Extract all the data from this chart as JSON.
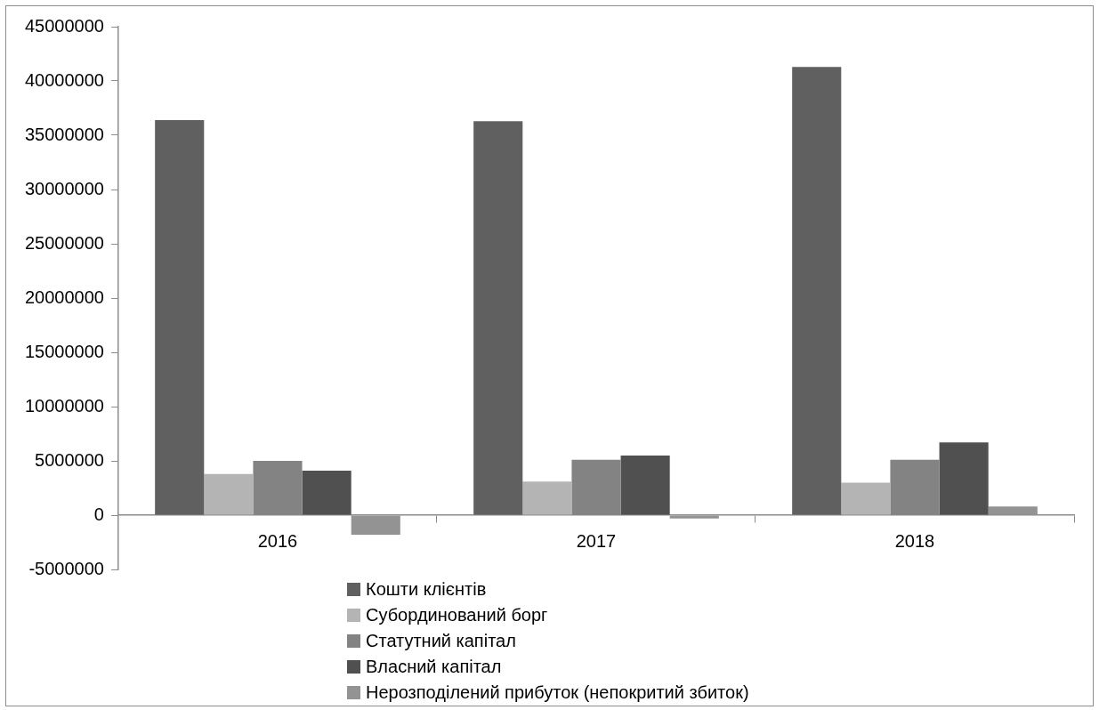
{
  "chart_data": {
    "type": "bar",
    "categories": [
      "2016",
      "2017",
      "2018"
    ],
    "series": [
      {
        "name": "Кошти клієнтів",
        "color": "#606060",
        "values": [
          36400000,
          36300000,
          41300000
        ]
      },
      {
        "name": "Субординований борг",
        "color": "#b4b4b4",
        "values": [
          3800000,
          3100000,
          3000000
        ]
      },
      {
        "name": "Статутний капітал",
        "color": "#838383",
        "values": [
          5000000,
          5100000,
          5100000
        ]
      },
      {
        "name": "Власний капітал",
        "color": "#505050",
        "values": [
          4100000,
          5500000,
          6700000
        ]
      },
      {
        "name": "Нерозподілений прибуток (непокритий збиток)",
        "color": "#939393",
        "values": [
          -1800000,
          -300000,
          800000
        ]
      }
    ],
    "ylim": [
      -5000000,
      45000000
    ],
    "yticks": [
      -5000000,
      0,
      5000000,
      10000000,
      15000000,
      20000000,
      25000000,
      30000000,
      35000000,
      40000000,
      45000000
    ],
    "grid": false,
    "legend": "bottom"
  }
}
